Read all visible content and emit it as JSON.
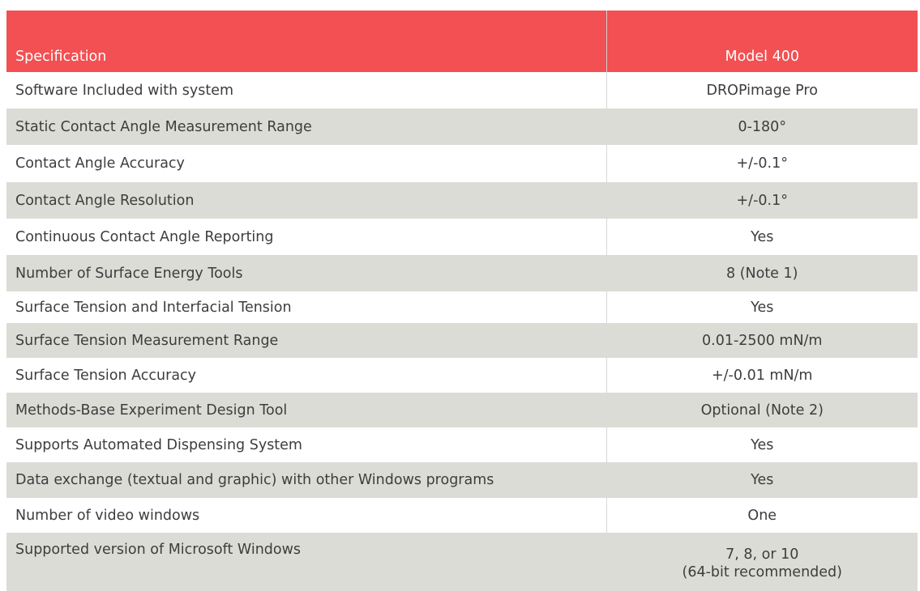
{
  "table": {
    "headers": [
      "Specification",
      "Model 400"
    ],
    "rows": [
      {
        "spec": "Software Included with system",
        "value": "DROPimage Pro"
      },
      {
        "spec": "Static Contact Angle Measurement Range",
        "value": "0-180°"
      },
      {
        "spec": "Contact Angle Accuracy",
        "value": "+/-0.1°"
      },
      {
        "spec": "Contact Angle Resolution",
        "value": "+/-0.1°"
      },
      {
        "spec": "Continuous Contact Angle Reporting",
        "value": "Yes"
      },
      {
        "spec": "Number of Surface Energy Tools",
        "value": "8 (Note 1)"
      },
      {
        "spec": "Surface Tension and Interfacial Tension",
        "value": "Yes"
      },
      {
        "spec": "Surface Tension Measurement Range",
        "value": "0.01-2500 mN/m"
      },
      {
        "spec": "Surface Tension Accuracy",
        "value": "+/-0.01 mN/m"
      },
      {
        "spec": "Methods-Base Experiment Design Tool",
        "value": "Optional (Note 2)"
      },
      {
        "spec": "Supports Automated Dispensing System",
        "value": "Yes"
      },
      {
        "spec": "Data exchange (textual and graphic) with other Windows programs",
        "value": "Yes"
      },
      {
        "spec": "Number of video windows",
        "value": "One"
      },
      {
        "spec": "Supported version of Microsoft Windows",
        "value": "7, 8, or 10",
        "value_note": "(64-bit recommended)"
      }
    ]
  },
  "colors": {
    "header_bg": "#f25052",
    "header_text": "#ffffff",
    "stripe_bg": "#dcdcd7",
    "row_bg": "#ffffff",
    "text": "#3d3d3d"
  }
}
